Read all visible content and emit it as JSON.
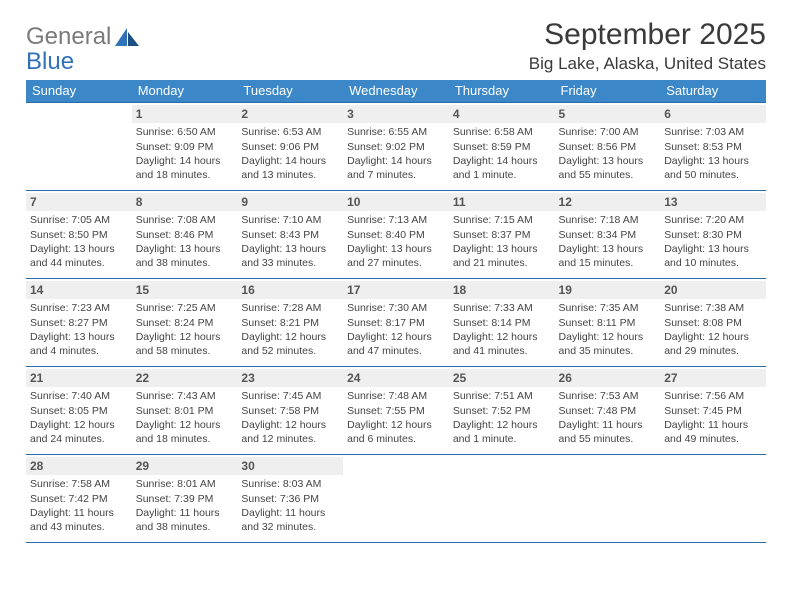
{
  "logo": {
    "word1": "General",
    "word2": "Blue"
  },
  "colors": {
    "header_bg": "#3c87c7",
    "header_text": "#ffffff",
    "row_border": "#2b6aa5",
    "daynum_bg": "#efefef",
    "logo_gray": "#7a7a7a",
    "logo_blue": "#2f72b8",
    "page_bg": "#ffffff",
    "body_text": "#333333"
  },
  "title": "September 2025",
  "location": "Big Lake, Alaska, United States",
  "weekdays": [
    "Sunday",
    "Monday",
    "Tuesday",
    "Wednesday",
    "Thursday",
    "Friday",
    "Saturday"
  ],
  "weeks": [
    [
      null,
      {
        "n": "1",
        "sr": "6:50 AM",
        "ss": "9:09 PM",
        "dl": "14 hours and 18 minutes."
      },
      {
        "n": "2",
        "sr": "6:53 AM",
        "ss": "9:06 PM",
        "dl": "14 hours and 13 minutes."
      },
      {
        "n": "3",
        "sr": "6:55 AM",
        "ss": "9:02 PM",
        "dl": "14 hours and 7 minutes."
      },
      {
        "n": "4",
        "sr": "6:58 AM",
        "ss": "8:59 PM",
        "dl": "14 hours and 1 minute."
      },
      {
        "n": "5",
        "sr": "7:00 AM",
        "ss": "8:56 PM",
        "dl": "13 hours and 55 minutes."
      },
      {
        "n": "6",
        "sr": "7:03 AM",
        "ss": "8:53 PM",
        "dl": "13 hours and 50 minutes."
      }
    ],
    [
      {
        "n": "7",
        "sr": "7:05 AM",
        "ss": "8:50 PM",
        "dl": "13 hours and 44 minutes."
      },
      {
        "n": "8",
        "sr": "7:08 AM",
        "ss": "8:46 PM",
        "dl": "13 hours and 38 minutes."
      },
      {
        "n": "9",
        "sr": "7:10 AM",
        "ss": "8:43 PM",
        "dl": "13 hours and 33 minutes."
      },
      {
        "n": "10",
        "sr": "7:13 AM",
        "ss": "8:40 PM",
        "dl": "13 hours and 27 minutes."
      },
      {
        "n": "11",
        "sr": "7:15 AM",
        "ss": "8:37 PM",
        "dl": "13 hours and 21 minutes."
      },
      {
        "n": "12",
        "sr": "7:18 AM",
        "ss": "8:34 PM",
        "dl": "13 hours and 15 minutes."
      },
      {
        "n": "13",
        "sr": "7:20 AM",
        "ss": "8:30 PM",
        "dl": "13 hours and 10 minutes."
      }
    ],
    [
      {
        "n": "14",
        "sr": "7:23 AM",
        "ss": "8:27 PM",
        "dl": "13 hours and 4 minutes."
      },
      {
        "n": "15",
        "sr": "7:25 AM",
        "ss": "8:24 PM",
        "dl": "12 hours and 58 minutes."
      },
      {
        "n": "16",
        "sr": "7:28 AM",
        "ss": "8:21 PM",
        "dl": "12 hours and 52 minutes."
      },
      {
        "n": "17",
        "sr": "7:30 AM",
        "ss": "8:17 PM",
        "dl": "12 hours and 47 minutes."
      },
      {
        "n": "18",
        "sr": "7:33 AM",
        "ss": "8:14 PM",
        "dl": "12 hours and 41 minutes."
      },
      {
        "n": "19",
        "sr": "7:35 AM",
        "ss": "8:11 PM",
        "dl": "12 hours and 35 minutes."
      },
      {
        "n": "20",
        "sr": "7:38 AM",
        "ss": "8:08 PM",
        "dl": "12 hours and 29 minutes."
      }
    ],
    [
      {
        "n": "21",
        "sr": "7:40 AM",
        "ss": "8:05 PM",
        "dl": "12 hours and 24 minutes."
      },
      {
        "n": "22",
        "sr": "7:43 AM",
        "ss": "8:01 PM",
        "dl": "12 hours and 18 minutes."
      },
      {
        "n": "23",
        "sr": "7:45 AM",
        "ss": "7:58 PM",
        "dl": "12 hours and 12 minutes."
      },
      {
        "n": "24",
        "sr": "7:48 AM",
        "ss": "7:55 PM",
        "dl": "12 hours and 6 minutes."
      },
      {
        "n": "25",
        "sr": "7:51 AM",
        "ss": "7:52 PM",
        "dl": "12 hours and 1 minute."
      },
      {
        "n": "26",
        "sr": "7:53 AM",
        "ss": "7:48 PM",
        "dl": "11 hours and 55 minutes."
      },
      {
        "n": "27",
        "sr": "7:56 AM",
        "ss": "7:45 PM",
        "dl": "11 hours and 49 minutes."
      }
    ],
    [
      {
        "n": "28",
        "sr": "7:58 AM",
        "ss": "7:42 PM",
        "dl": "11 hours and 43 minutes."
      },
      {
        "n": "29",
        "sr": "8:01 AM",
        "ss": "7:39 PM",
        "dl": "11 hours and 38 minutes."
      },
      {
        "n": "30",
        "sr": "8:03 AM",
        "ss": "7:36 PM",
        "dl": "11 hours and 32 minutes."
      },
      null,
      null,
      null,
      null
    ]
  ],
  "labels": {
    "sunrise": "Sunrise:",
    "sunset": "Sunset:",
    "daylight": "Daylight:"
  }
}
